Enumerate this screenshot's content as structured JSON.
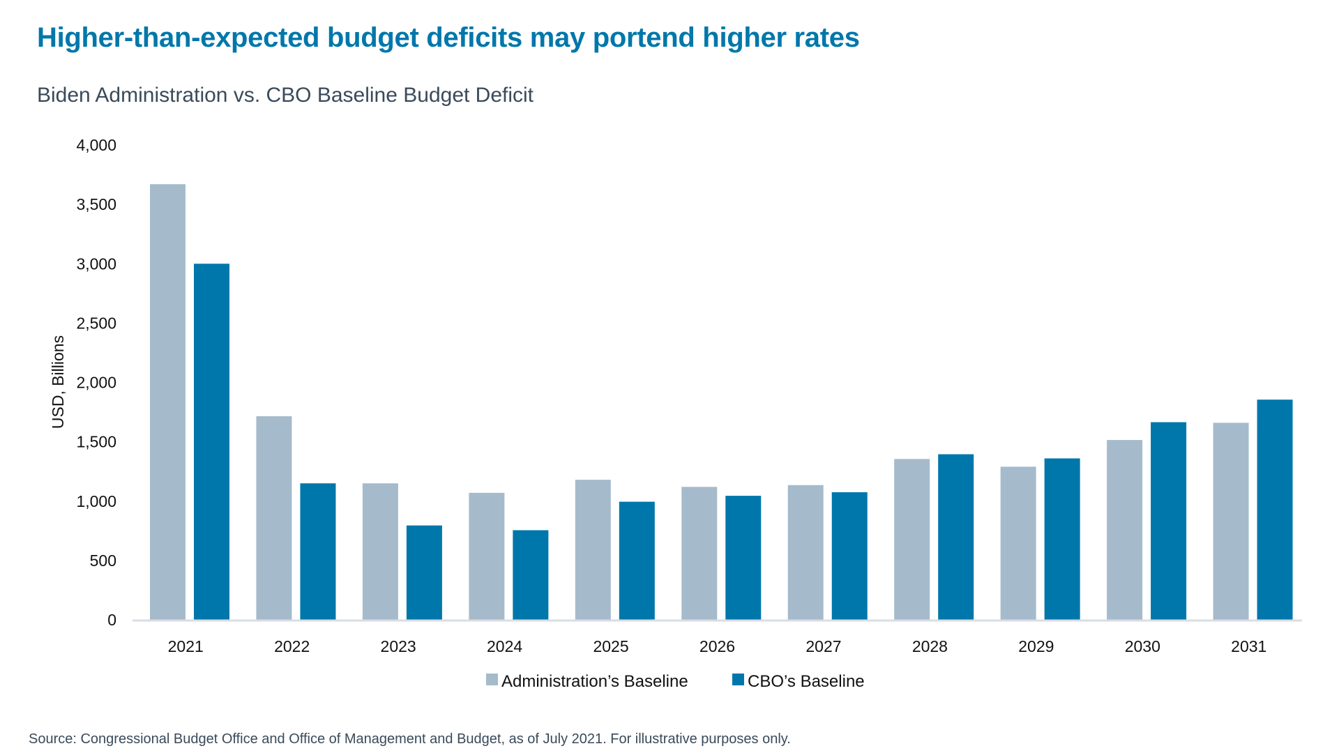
{
  "title": "Higher-than-expected budget deficits may portend higher rates",
  "subtitle": "Biden Administration vs. CBO Baseline Budget Deficit",
  "source": "Source: Congressional Budget Office and Office of Management and Budget, as of July 2021. For illustrative purposes only.",
  "chart_data": {
    "type": "bar",
    "title": "Biden Administration vs. CBO Baseline Budget Deficit",
    "xlabel": "",
    "ylabel": "USD, Billions",
    "ylim": [
      0,
      4000
    ],
    "yticks": [
      "0",
      "500",
      "1,000",
      "1,500",
      "2,000",
      "2,500",
      "3,000",
      "3,500",
      "4,000"
    ],
    "grid": false,
    "legend_position": "bottom",
    "categories": [
      "2021",
      "2022",
      "2023",
      "2024",
      "2025",
      "2026",
      "2027",
      "2028",
      "2029",
      "2030",
      "2031"
    ],
    "series": [
      {
        "name": "Administration’s Baseline",
        "color": "#a5bbcb",
        "values": [
          3670,
          1715,
          1150,
          1070,
          1180,
          1120,
          1135,
          1355,
          1290,
          1515,
          1660
        ]
      },
      {
        "name": "CBO’s Baseline",
        "color": "#0077aa",
        "values": [
          3000,
          1150,
          795,
          755,
          995,
          1045,
          1075,
          1395,
          1360,
          1665,
          1855
        ]
      }
    ]
  }
}
